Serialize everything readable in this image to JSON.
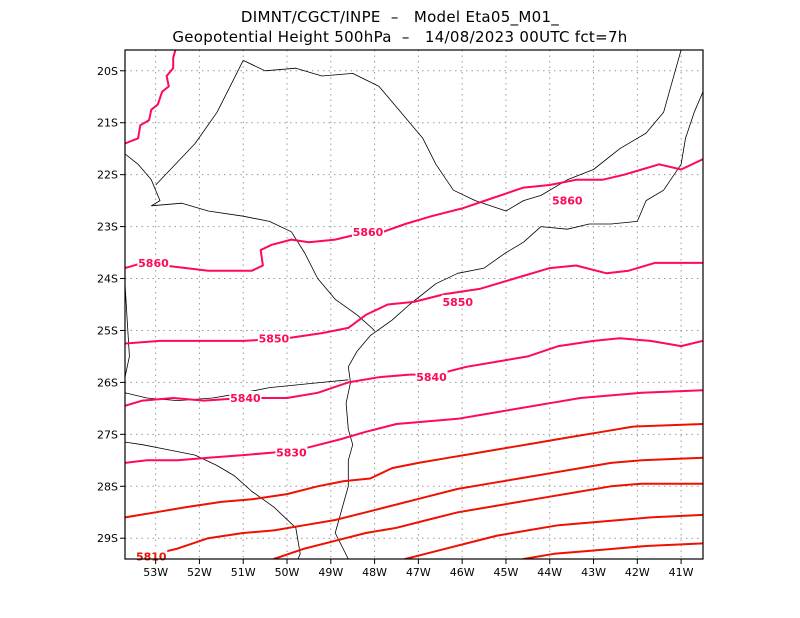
{
  "header": {
    "title_line1": "DIMNT/CGCT/INPE  –   Model Eta05_M01_",
    "title_line2": "Geopotential Height 500hPa  –   14/08/2023 00UTC fct=7h"
  },
  "map": {
    "lon_range": [
      -53.7,
      -40.5
    ],
    "lat_range": [
      -29.4,
      -19.6
    ],
    "x_ticks": [
      {
        "value": -53,
        "label": "53W"
      },
      {
        "value": -52,
        "label": "52W"
      },
      {
        "value": -51,
        "label": "51W"
      },
      {
        "value": -50,
        "label": "50W"
      },
      {
        "value": -49,
        "label": "49W"
      },
      {
        "value": -48,
        "label": "48W"
      },
      {
        "value": -47,
        "label": "47W"
      },
      {
        "value": -46,
        "label": "46W"
      },
      {
        "value": -45,
        "label": "45W"
      },
      {
        "value": -44,
        "label": "44W"
      },
      {
        "value": -43,
        "label": "43W"
      },
      {
        "value": -42,
        "label": "42W"
      },
      {
        "value": -41,
        "label": "41W"
      }
    ],
    "y_ticks": [
      {
        "value": -20,
        "label": "20S"
      },
      {
        "value": -21,
        "label": "21S"
      },
      {
        "value": -22,
        "label": "22S"
      },
      {
        "value": -23,
        "label": "23S"
      },
      {
        "value": -24,
        "label": "24S"
      },
      {
        "value": -25,
        "label": "25S"
      },
      {
        "value": -26,
        "label": "26S"
      },
      {
        "value": -27,
        "label": "27S"
      },
      {
        "value": -28,
        "label": "28S"
      },
      {
        "value": -29,
        "label": "29S"
      }
    ],
    "grid": "dotted",
    "colors": {
      "high": "#ff0a55",
      "low": "#ee1100",
      "border": "#000000",
      "grid": "#9a9a9a"
    }
  },
  "contours": [
    {
      "name": "",
      "label": "",
      "tone": "high",
      "points": [
        [
          -53.7,
          -21.4
        ],
        [
          -53.4,
          -21.3
        ],
        [
          -53.35,
          -21.05
        ],
        [
          -53.15,
          -20.95
        ],
        [
          -53.1,
          -20.75
        ],
        [
          -52.95,
          -20.65
        ],
        [
          -52.85,
          -20.4
        ],
        [
          -52.7,
          -20.3
        ],
        [
          -52.75,
          -20.1
        ],
        [
          -52.6,
          -19.95
        ],
        [
          -52.6,
          -19.75
        ],
        [
          -52.55,
          -19.6
        ]
      ]
    },
    {
      "name": "",
      "label": "5860",
      "tone": "high",
      "label_at": [
        -53.05,
        -23.7
      ],
      "points": [
        [
          -53.7,
          -23.8
        ],
        [
          -53.3,
          -23.7
        ],
        [
          -52.8,
          -23.75
        ],
        [
          -52.3,
          -23.8
        ],
        [
          -51.8,
          -23.85
        ],
        [
          -51.2,
          -23.85
        ],
        [
          -50.8,
          -23.85
        ],
        [
          -50.55,
          -23.75
        ],
        [
          -50.6,
          -23.45
        ],
        [
          -50.35,
          -23.35
        ],
        [
          -49.9,
          -23.25
        ],
        [
          -49.5,
          -23.3
        ],
        [
          -48.9,
          -23.25
        ],
        [
          -48.4,
          -23.15
        ],
        [
          -47.8,
          -23.1
        ],
        [
          -47.3,
          -22.95
        ],
        [
          -46.7,
          -22.8
        ],
        [
          -46.0,
          -22.65
        ],
        [
          -45.3,
          -22.45
        ],
        [
          -44.6,
          -22.25
        ],
        [
          -44.0,
          -22.2
        ],
        [
          -43.4,
          -22.1
        ],
        [
          -42.8,
          -22.1
        ],
        [
          -42.3,
          -22.0
        ],
        [
          -41.9,
          -21.9
        ],
        [
          -41.5,
          -21.8
        ],
        [
          -41.0,
          -21.9
        ],
        [
          -40.5,
          -21.7
        ]
      ],
      "extra_labels": [
        [
          -48.15,
          -23.1
        ],
        [
          -43.6,
          -22.5
        ]
      ]
    },
    {
      "name": "",
      "label": "5850",
      "tone": "high",
      "label_at": [
        -50.3,
        -25.15
      ],
      "points": [
        [
          -53.7,
          -25.25
        ],
        [
          -52.9,
          -25.2
        ],
        [
          -52.0,
          -25.2
        ],
        [
          -51.0,
          -25.2
        ],
        [
          -50.0,
          -25.15
        ],
        [
          -49.2,
          -25.05
        ],
        [
          -48.6,
          -24.95
        ],
        [
          -48.2,
          -24.7
        ],
        [
          -47.7,
          -24.5
        ],
        [
          -47.1,
          -24.45
        ],
        [
          -46.4,
          -24.3
        ],
        [
          -45.6,
          -24.2
        ],
        [
          -44.8,
          -24.0
        ],
        [
          -44.0,
          -23.8
        ],
        [
          -43.4,
          -23.75
        ],
        [
          -42.7,
          -23.9
        ],
        [
          -42.2,
          -23.85
        ],
        [
          -41.6,
          -23.7
        ],
        [
          -40.5,
          -23.7
        ]
      ],
      "extra_labels": [
        [
          -46.1,
          -24.45
        ]
      ]
    },
    {
      "name": "",
      "label": "5840",
      "tone": "high",
      "label_at": [
        -50.95,
        -26.3
      ],
      "points": [
        [
          -53.7,
          -26.45
        ],
        [
          -53.3,
          -26.35
        ],
        [
          -52.6,
          -26.3
        ],
        [
          -51.9,
          -26.35
        ],
        [
          -51.0,
          -26.3
        ],
        [
          -50.0,
          -26.3
        ],
        [
          -49.3,
          -26.2
        ],
        [
          -48.6,
          -26.0
        ],
        [
          -47.9,
          -25.9
        ],
        [
          -47.2,
          -25.85
        ],
        [
          -46.6,
          -25.85
        ],
        [
          -45.9,
          -25.7
        ],
        [
          -45.2,
          -25.6
        ],
        [
          -44.5,
          -25.5
        ],
        [
          -43.8,
          -25.3
        ],
        [
          -43.0,
          -25.2
        ],
        [
          -42.4,
          -25.15
        ],
        [
          -41.7,
          -25.2
        ],
        [
          -41.0,
          -25.3
        ],
        [
          -40.5,
          -25.2
        ]
      ],
      "extra_labels": [
        [
          -46.7,
          -25.9
        ]
      ]
    },
    {
      "name": "",
      "label": "5830",
      "tone": "high",
      "label_at": [
        -49.9,
        -27.35
      ],
      "points": [
        [
          -53.7,
          -27.55
        ],
        [
          -53.2,
          -27.5
        ],
        [
          -52.5,
          -27.5
        ],
        [
          -51.8,
          -27.45
        ],
        [
          -51.0,
          -27.4
        ],
        [
          -50.3,
          -27.35
        ],
        [
          -49.5,
          -27.25
        ],
        [
          -48.8,
          -27.1
        ],
        [
          -48.2,
          -26.95
        ],
        [
          -47.5,
          -26.8
        ],
        [
          -46.8,
          -26.75
        ],
        [
          -46.1,
          -26.7
        ],
        [
          -45.4,
          -26.6
        ],
        [
          -44.7,
          -26.5
        ],
        [
          -44.0,
          -26.4
        ],
        [
          -43.3,
          -26.3
        ],
        [
          -42.6,
          -26.25
        ],
        [
          -41.9,
          -26.2
        ],
        [
          -40.5,
          -26.15
        ]
      ]
    },
    {
      "name": "",
      "label": "",
      "tone": "low",
      "points": [
        [
          -53.7,
          -28.6
        ],
        [
          -53.0,
          -28.5
        ],
        [
          -52.3,
          -28.4
        ],
        [
          -51.5,
          -28.3
        ],
        [
          -50.8,
          -28.25
        ],
        [
          -50.0,
          -28.15
        ],
        [
          -49.3,
          -28.0
        ],
        [
          -48.7,
          -27.9
        ],
        [
          -48.1,
          -27.85
        ],
        [
          -47.6,
          -27.65
        ],
        [
          -47.0,
          -27.55
        ],
        [
          -46.3,
          -27.45
        ],
        [
          -45.6,
          -27.35
        ],
        [
          -44.9,
          -27.25
        ],
        [
          -44.2,
          -27.15
        ],
        [
          -43.5,
          -27.05
        ],
        [
          -42.8,
          -26.95
        ],
        [
          -42.1,
          -26.85
        ],
        [
          -40.5,
          -26.8
        ]
      ]
    },
    {
      "name": "",
      "label": "5810",
      "tone": "low",
      "label_at": [
        -53.1,
        -29.35
      ],
      "points": [
        [
          -53.4,
          -29.4
        ],
        [
          -53.0,
          -29.3
        ],
        [
          -52.5,
          -29.2
        ],
        [
          -51.8,
          -29.0
        ],
        [
          -51.0,
          -28.9
        ],
        [
          -50.3,
          -28.85
        ],
        [
          -49.6,
          -28.75
        ],
        [
          -48.9,
          -28.65
        ],
        [
          -48.2,
          -28.5
        ],
        [
          -47.5,
          -28.35
        ],
        [
          -46.8,
          -28.2
        ],
        [
          -46.1,
          -28.05
        ],
        [
          -45.4,
          -27.95
        ],
        [
          -44.7,
          -27.85
        ],
        [
          -44.0,
          -27.75
        ],
        [
          -43.3,
          -27.65
        ],
        [
          -42.6,
          -27.55
        ],
        [
          -41.9,
          -27.5
        ],
        [
          -40.5,
          -27.45
        ]
      ]
    },
    {
      "name": "",
      "label": "",
      "tone": "low",
      "points": [
        [
          -50.3,
          -29.4
        ],
        [
          -49.6,
          -29.2
        ],
        [
          -48.9,
          -29.05
        ],
        [
          -48.2,
          -28.9
        ],
        [
          -47.5,
          -28.8
        ],
        [
          -46.8,
          -28.65
        ],
        [
          -46.1,
          -28.5
        ],
        [
          -45.4,
          -28.4
        ],
        [
          -44.7,
          -28.3
        ],
        [
          -44.0,
          -28.2
        ],
        [
          -43.3,
          -28.1
        ],
        [
          -42.6,
          -28.0
        ],
        [
          -41.9,
          -27.95
        ],
        [
          -40.5,
          -27.95
        ]
      ]
    },
    {
      "name": "",
      "label": "",
      "tone": "low",
      "points": [
        [
          -47.3,
          -29.4
        ],
        [
          -46.6,
          -29.25
        ],
        [
          -45.9,
          -29.1
        ],
        [
          -45.2,
          -28.95
        ],
        [
          -44.5,
          -28.85
        ],
        [
          -43.8,
          -28.75
        ],
        [
          -43.1,
          -28.7
        ],
        [
          -42.4,
          -28.65
        ],
        [
          -41.7,
          -28.6
        ],
        [
          -40.5,
          -28.55
        ]
      ]
    },
    {
      "name": "",
      "label": "",
      "tone": "low",
      "points": [
        [
          -44.6,
          -29.4
        ],
        [
          -43.9,
          -29.3
        ],
        [
          -43.2,
          -29.25
        ],
        [
          -42.5,
          -29.2
        ],
        [
          -41.8,
          -29.15
        ],
        [
          -40.5,
          -29.1
        ]
      ]
    }
  ],
  "borders": [
    {
      "name": "coastline",
      "points": [
        [
          -48.6,
          -29.4
        ],
        [
          -48.9,
          -28.9
        ],
        [
          -48.8,
          -28.6
        ],
        [
          -48.7,
          -28.3
        ],
        [
          -48.6,
          -28.0
        ],
        [
          -48.6,
          -27.5
        ],
        [
          -48.5,
          -27.2
        ],
        [
          -48.6,
          -26.9
        ],
        [
          -48.65,
          -26.4
        ],
        [
          -48.55,
          -26.0
        ],
        [
          -48.6,
          -25.7
        ],
        [
          -48.4,
          -25.4
        ],
        [
          -48.1,
          -25.1
        ],
        [
          -47.6,
          -24.8
        ],
        [
          -47.2,
          -24.5
        ],
        [
          -46.6,
          -24.1
        ],
        [
          -46.1,
          -23.9
        ],
        [
          -45.5,
          -23.8
        ],
        [
          -45.0,
          -23.5
        ],
        [
          -44.6,
          -23.3
        ],
        [
          -44.2,
          -23.0
        ],
        [
          -43.6,
          -23.05
        ],
        [
          -43.1,
          -22.95
        ],
        [
          -42.6,
          -22.95
        ],
        [
          -42.0,
          -22.9
        ],
        [
          -41.8,
          -22.5
        ],
        [
          -41.4,
          -22.3
        ],
        [
          -41.0,
          -21.8
        ],
        [
          -40.9,
          -21.3
        ],
        [
          -40.7,
          -20.8
        ],
        [
          -40.5,
          -20.4
        ]
      ]
    },
    {
      "name": "parana-santa-catarina-border",
      "points": [
        [
          -53.7,
          -26.2
        ],
        [
          -53.2,
          -26.3
        ],
        [
          -52.5,
          -26.35
        ],
        [
          -51.7,
          -26.3
        ],
        [
          -51.0,
          -26.2
        ],
        [
          -50.4,
          -26.1
        ],
        [
          -49.8,
          -26.05
        ],
        [
          -49.2,
          -26.0
        ],
        [
          -48.6,
          -25.95
        ]
      ]
    },
    {
      "name": "santa-catarina-rio-grande-border",
      "points": [
        [
          -53.7,
          -27.15
        ],
        [
          -53.3,
          -27.2
        ],
        [
          -52.7,
          -27.3
        ],
        [
          -52.1,
          -27.4
        ],
        [
          -51.6,
          -27.6
        ],
        [
          -51.2,
          -27.8
        ],
        [
          -50.8,
          -28.1
        ],
        [
          -50.3,
          -28.4
        ],
        [
          -49.8,
          -28.8
        ],
        [
          -49.7,
          -29.3
        ],
        [
          -49.75,
          -29.4
        ]
      ]
    },
    {
      "name": "sao-paulo-parana-border",
      "points": [
        [
          -53.1,
          -22.6
        ],
        [
          -52.4,
          -22.55
        ],
        [
          -51.8,
          -22.7
        ],
        [
          -51.0,
          -22.8
        ],
        [
          -50.4,
          -22.9
        ],
        [
          -49.9,
          -23.1
        ],
        [
          -49.6,
          -23.5
        ],
        [
          -49.3,
          -24.0
        ],
        [
          -48.9,
          -24.4
        ],
        [
          -48.4,
          -24.7
        ],
        [
          -48.0,
          -25.0
        ]
      ]
    },
    {
      "name": "mato-grosso-do-sul-border",
      "points": [
        [
          -53.7,
          -21.6
        ],
        [
          -53.4,
          -21.8
        ],
        [
          -53.1,
          -22.1
        ],
        [
          -52.9,
          -22.5
        ],
        [
          -53.1,
          -22.6
        ]
      ]
    },
    {
      "name": "minas-gerais-border",
      "points": [
        [
          -51.0,
          -19.8
        ],
        [
          -50.5,
          -20.0
        ],
        [
          -49.8,
          -19.95
        ],
        [
          -49.2,
          -20.1
        ],
        [
          -48.5,
          -20.05
        ],
        [
          -47.9,
          -20.3
        ],
        [
          -47.4,
          -20.8
        ],
        [
          -46.9,
          -21.3
        ],
        [
          -46.6,
          -21.8
        ],
        [
          -46.2,
          -22.3
        ],
        [
          -45.7,
          -22.5
        ],
        [
          -45.0,
          -22.7
        ],
        [
          -44.6,
          -22.5
        ],
        [
          -44.2,
          -22.4
        ],
        [
          -43.6,
          -22.1
        ],
        [
          -43.0,
          -21.9
        ],
        [
          -42.4,
          -21.5
        ],
        [
          -41.8,
          -21.2
        ],
        [
          -41.4,
          -20.8
        ],
        [
          -41.2,
          -20.2
        ],
        [
          -41.0,
          -19.6
        ]
      ]
    },
    {
      "name": "minas-sao-paulo-north",
      "points": [
        [
          -51.0,
          -19.8
        ],
        [
          -51.3,
          -20.3
        ],
        [
          -51.6,
          -20.8
        ],
        [
          -52.1,
          -21.4
        ],
        [
          -53.0,
          -22.2
        ]
      ]
    },
    {
      "name": "paraguay-border",
      "points": [
        [
          -53.7,
          -25.9
        ],
        [
          -53.6,
          -25.5
        ],
        [
          -53.65,
          -24.8
        ],
        [
          -53.7,
          -24.1
        ]
      ]
    }
  ]
}
